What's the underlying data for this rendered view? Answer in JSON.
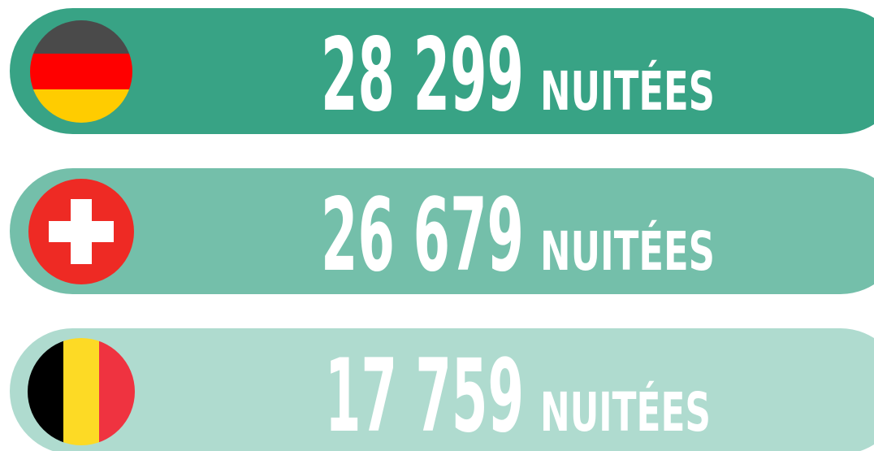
{
  "rows": [
    {
      "value": "28 299",
      "unit": "NUITÉES"
    },
    {
      "value": "26 679",
      "unit": "NUITÉES"
    },
    {
      "value": "17 759",
      "unit": "NUITÉES"
    }
  ]
}
